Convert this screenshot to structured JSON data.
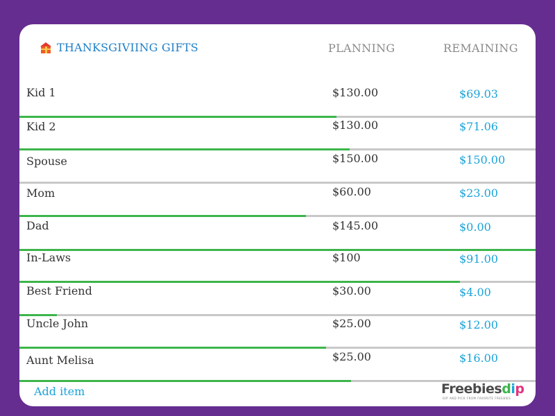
{
  "header": {
    "title": "THANKSGIVIING GIFTS",
    "icon": "gift-icon",
    "columns": {
      "planning": "PLANNING",
      "remaining": "REMAINING"
    }
  },
  "accent_colors": {
    "background": "#662d91",
    "progress": "#3cb54a",
    "remaining_text": "#1aa3d9",
    "title": "#1e7fc6"
  },
  "items": [
    {
      "name": "Kid 1",
      "planning": "$130.00",
      "remaining": "$69.03",
      "progress": 0.614
    },
    {
      "name": "Kid 2",
      "planning": "$130.00",
      "remaining": "$71.06",
      "progress": 0.64
    },
    {
      "name": "Spouse",
      "planning": "$150.00",
      "remaining": "$150.00",
      "progress": 0
    },
    {
      "name": "Mom",
      "planning": "$60.00",
      "remaining": "$23.00",
      "progress": 0.555
    },
    {
      "name": "Dad",
      "planning": "$145.00",
      "remaining": "$0.00",
      "progress": 1.0
    },
    {
      "name": "In-Laws",
      "planning": "$100",
      "remaining": "$91.00",
      "progress": 0.853
    },
    {
      "name": "Best Friend",
      "planning": "$30.00",
      "remaining": "$4.00",
      "progress": 0.073
    },
    {
      "name": "Uncle John",
      "planning": "$25.00",
      "remaining": "$12.00",
      "progress": 0.594
    },
    {
      "name": "Aunt Melisa",
      "planning": "$25.00",
      "remaining": "$16.00",
      "progress": 0.642
    }
  ],
  "footer": {
    "add_item": "Add item",
    "logo": {
      "freebies": "Freebies",
      "d": "d",
      "i": "i",
      "p": "p",
      "tagline": "DIP AND PICK FROM FAVORITE FREEBIES"
    }
  }
}
